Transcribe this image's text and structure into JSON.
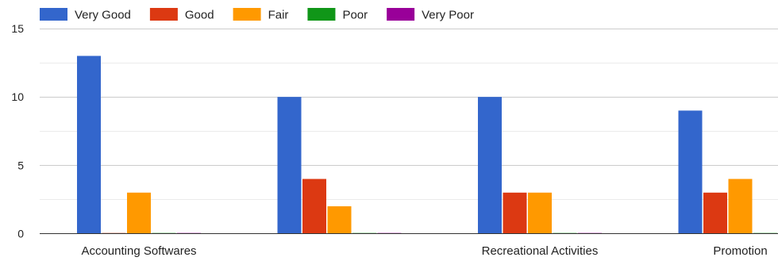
{
  "chart_data": {
    "type": "bar",
    "categories": [
      "Accounting Softwares",
      "",
      "Recreational Activities",
      "Promotion"
    ],
    "series": [
      {
        "name": "Very Good",
        "color": "#3366cc",
        "values": [
          13,
          10,
          10,
          9
        ]
      },
      {
        "name": "Good",
        "color": "#dc3912",
        "values": [
          0,
          4,
          3,
          3
        ]
      },
      {
        "name": "Fair",
        "color": "#ff9900",
        "values": [
          3,
          2,
          3,
          4
        ]
      },
      {
        "name": "Poor",
        "color": "#109618",
        "values": [
          0,
          0,
          0,
          0
        ]
      },
      {
        "name": "Very Poor",
        "color": "#990099",
        "values": [
          0,
          0,
          0,
          0
        ]
      }
    ],
    "ylim": [
      0,
      15
    ],
    "yticks": [
      0,
      5,
      10,
      15
    ],
    "grid": true,
    "legend": "top-left"
  }
}
